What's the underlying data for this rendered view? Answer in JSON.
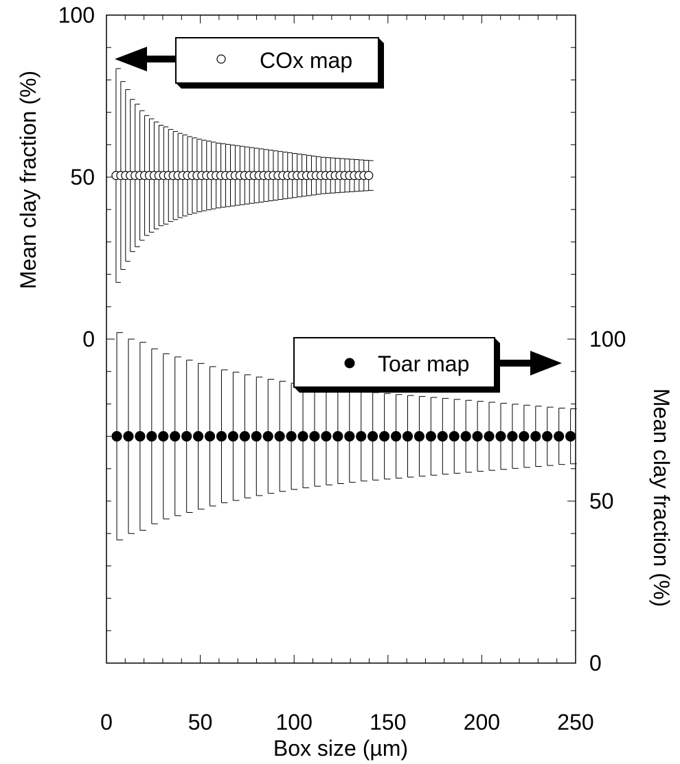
{
  "chart_data": {
    "type": "scatter",
    "xlabel": "Box size (µm)",
    "x_ticks": [
      "0",
      "50",
      "100",
      "150",
      "200",
      "250"
    ],
    "xlim": [
      0,
      250
    ],
    "left_axis": {
      "label": "Mean clay fraction (%)",
      "ticks": [
        "0",
        "50",
        "100"
      ],
      "range": [
        0,
        100
      ]
    },
    "right_axis": {
      "label": "Mean clay fraction (%)",
      "ticks": [
        "0",
        "50",
        "100"
      ],
      "range": [
        0,
        100
      ]
    },
    "series": [
      {
        "name": "COx map",
        "marker": "open-circle",
        "axis": "left",
        "mean": 50.5,
        "x_start": 5.1,
        "x_step": 2.54,
        "count": 54,
        "error": [
          33,
          29,
          26.5,
          23.5,
          22,
          20,
          18.5,
          17.5,
          16.5,
          15.5,
          15,
          14.2,
          13.6,
          13,
          12.5,
          12,
          11.6,
          11.2,
          10.9,
          10.6,
          10.3,
          10,
          9.8,
          9.6,
          9.4,
          9.2,
          9,
          8.8,
          8.6,
          8.4,
          8.2,
          8,
          7.8,
          7.6,
          7.4,
          7.2,
          7,
          6.8,
          6.6,
          6.4,
          6.2,
          6,
          5.8,
          5.6,
          5.5,
          5.4,
          5.3,
          5.2,
          5.1,
          5,
          4.9,
          4.8,
          4.7,
          4.6
        ],
        "legend_arrow": "left"
      },
      {
        "name": "Toar map",
        "marker": "filled-circle",
        "axis": "right",
        "mean": 70,
        "x_start": 5.5,
        "x_step": 6.2,
        "count": 40,
        "error": [
          32,
          30,
          29,
          27,
          25.5,
          24.5,
          23.5,
          22.5,
          21.5,
          20.5,
          19.8,
          19,
          18.3,
          17.6,
          17,
          16.4,
          15.9,
          15.4,
          15,
          14.6,
          14.2,
          13.8,
          13.5,
          13.2,
          12.9,
          12.6,
          12.3,
          12,
          11.7,
          11.4,
          11.1,
          10.8,
          10.5,
          10.2,
          9.9,
          9.6,
          9.3,
          9,
          8.7,
          8.5
        ],
        "legend_arrow": "right"
      }
    ]
  }
}
